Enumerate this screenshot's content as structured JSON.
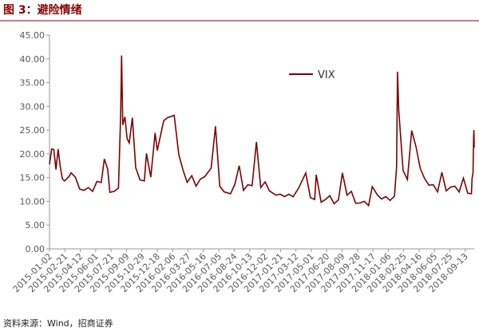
{
  "chart_data": {
    "type": "line",
    "title": "图 3：避险情绪",
    "source": "资料来源：Wind，招商证券",
    "series": [
      {
        "name": "VIX",
        "color": "#7f0000",
        "x": [
          "2015-01-02",
          "2015-01-09",
          "2015-01-16",
          "2015-01-23",
          "2015-01-30",
          "2015-02-06",
          "2015-02-13",
          "2015-02-20",
          "2015-03-06",
          "2015-03-13",
          "2015-03-27",
          "2015-04-10",
          "2015-04-24",
          "2015-05-08",
          "2015-05-22",
          "2015-06-05",
          "2015-06-19",
          "2015-06-29",
          "2015-07-10",
          "2015-07-17",
          "2015-07-31",
          "2015-08-14",
          "2015-08-21",
          "2015-08-24",
          "2015-08-28",
          "2015-09-04",
          "2015-09-11",
          "2015-09-18",
          "2015-09-28",
          "2015-10-09",
          "2015-10-23",
          "2015-11-06",
          "2015-11-13",
          "2015-11-27",
          "2015-12-11",
          "2015-12-18",
          "2016-01-08",
          "2016-01-20",
          "2016-02-11",
          "2016-02-26",
          "2016-03-11",
          "2016-03-24",
          "2016-04-08",
          "2016-04-22",
          "2016-05-06",
          "2016-05-20",
          "2016-06-10",
          "2016-06-24",
          "2016-07-08",
          "2016-07-22",
          "2016-08-12",
          "2016-08-26",
          "2016-09-09",
          "2016-09-23",
          "2016-10-07",
          "2016-10-21",
          "2016-11-04",
          "2016-11-18",
          "2016-12-02",
          "2016-12-16",
          "2017-01-06",
          "2017-01-20",
          "2017-02-03",
          "2017-02-17",
          "2017-03-03",
          "2017-03-21",
          "2017-04-13",
          "2017-04-28",
          "2017-05-12",
          "2017-05-17",
          "2017-06-02",
          "2017-06-16",
          "2017-06-30",
          "2017-07-14",
          "2017-07-28",
          "2017-08-10",
          "2017-08-25",
          "2017-09-08",
          "2017-09-22",
          "2017-10-06",
          "2017-10-20",
          "2017-11-03",
          "2017-11-15",
          "2017-12-01",
          "2017-12-15",
          "2017-12-29",
          "2018-01-12",
          "2018-01-26",
          "2018-02-02",
          "2018-02-05",
          "2018-02-09",
          "2018-02-23",
          "2018-03-09",
          "2018-03-23",
          "2018-04-06",
          "2018-04-20",
          "2018-05-04",
          "2018-05-18",
          "2018-06-01",
          "2018-06-15",
          "2018-06-29",
          "2018-07-13",
          "2018-07-27",
          "2018-08-10",
          "2018-08-24",
          "2018-09-07",
          "2018-09-21",
          "2018-10-03",
          "2018-10-05",
          "2018-10-08",
          "2018-10-10",
          "2018-10-11",
          "2018-10-12"
        ],
        "values": [
          17.8,
          21.0,
          20.9,
          16.7,
          21.0,
          17.3,
          14.7,
          14.3,
          15.2,
          16.0,
          15.1,
          12.6,
          12.3,
          12.9,
          12.1,
          14.2,
          13.96,
          18.9,
          16.8,
          11.9,
          12.1,
          12.8,
          28.0,
          40.7,
          26.1,
          27.8,
          23.2,
          22.3,
          27.6,
          17.1,
          14.5,
          14.3,
          20.1,
          15.1,
          24.4,
          20.7,
          27.0,
          27.6,
          28.1,
          19.8,
          16.5,
          14.0,
          15.4,
          13.2,
          14.7,
          15.2,
          17.0,
          25.8,
          13.2,
          12.0,
          11.6,
          13.6,
          17.5,
          12.3,
          13.5,
          13.3,
          22.5,
          12.9,
          14.1,
          12.2,
          11.3,
          11.5,
          11.0,
          11.5,
          10.96,
          12.8,
          15.96,
          10.8,
          10.4,
          15.6,
          9.8,
          10.4,
          11.2,
          9.5,
          10.3,
          16.0,
          11.3,
          12.1,
          9.6,
          9.65,
          10.0,
          9.1,
          13.1,
          11.4,
          10.5,
          11.0,
          10.2,
          11.1,
          17.3,
          37.3,
          29.1,
          16.5,
          14.6,
          24.9,
          21.5,
          16.9,
          14.8,
          13.4,
          13.5,
          12.0,
          16.1,
          12.2,
          13.0,
          13.2,
          11.99,
          14.9,
          11.7,
          11.6,
          14.8,
          16.0,
          22.96,
          24.98,
          21.3
        ]
      }
    ],
    "xlim": [
      "2015-01-02",
      "2018-10-12"
    ],
    "xticks": [
      "2015-01-02",
      "2015-02-21",
      "2015-04-12",
      "2015-06-01",
      "2015-07-21",
      "2015-09-09",
      "2015-10-29",
      "2015-12-18",
      "2016-02-06",
      "2016-03-27",
      "2016-05-16",
      "2016-07-05",
      "2016-08-24",
      "2016-10-13",
      "2016-12-02",
      "2017-01-21",
      "2017-03-12",
      "2017-05-01",
      "2017-06-20",
      "2017-08-09",
      "2017-09-28",
      "2017-11-17",
      "2018-01-06",
      "2018-02-25",
      "2018-04-16",
      "2018-06-05",
      "2018-07-25",
      "2018-09-13"
    ],
    "ylim": [
      0,
      45
    ],
    "yticks": [
      {
        "value": 0,
        "label": "0.00"
      },
      {
        "value": 5,
        "label": "5.00"
      },
      {
        "value": 10,
        "label": "10.00"
      },
      {
        "value": 15,
        "label": "15.00"
      },
      {
        "value": 20,
        "label": "20.00"
      },
      {
        "value": 25,
        "label": "25.00"
      },
      {
        "value": 30,
        "label": "30.00"
      },
      {
        "value": 35,
        "label": "35.00"
      },
      {
        "value": 40,
        "label": "40.00"
      },
      {
        "value": 45,
        "label": "45.00"
      }
    ],
    "legend": "upper center"
  }
}
